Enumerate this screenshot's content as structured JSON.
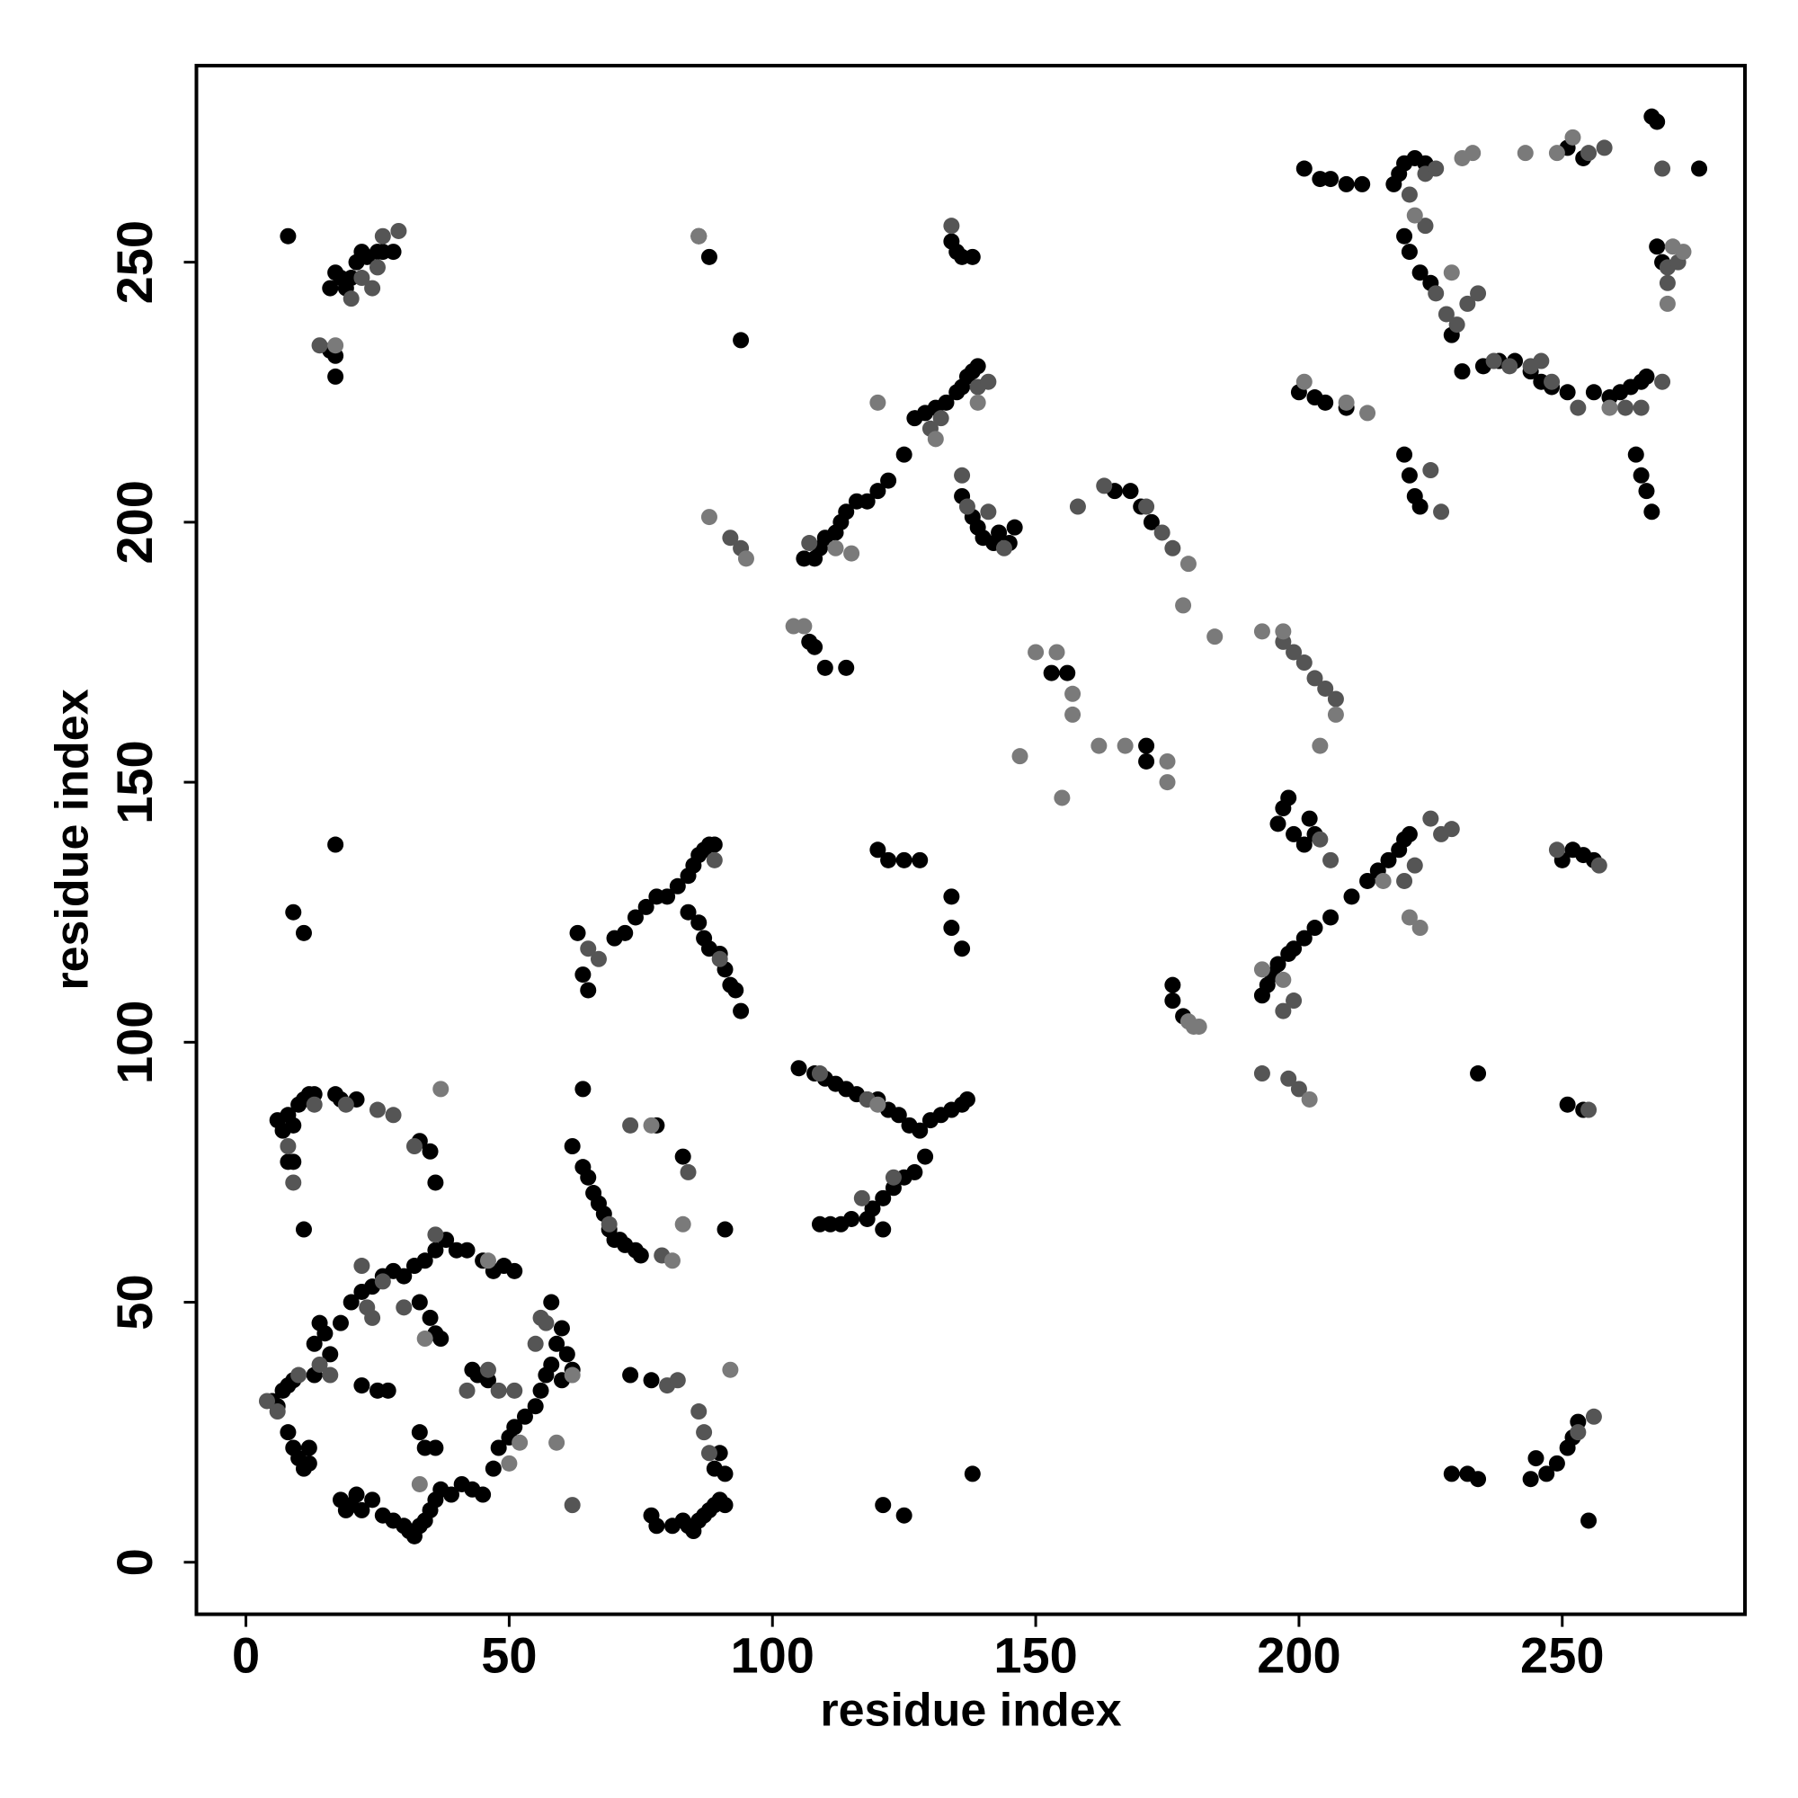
{
  "chart_data": {
    "type": "scatter",
    "xlabel": "residue index",
    "ylabel": "residue index",
    "xlim": [
      -9.4,
      284.7
    ],
    "ylim": [
      -10,
      287.8
    ],
    "xticks": [
      0,
      50,
      100,
      150,
      200,
      250
    ],
    "yticks": [
      0,
      50,
      100,
      150,
      200,
      250
    ],
    "series": [
      {
        "color": "#000000",
        "x": [
          5,
          6,
          7,
          8,
          9,
          8,
          9,
          10,
          11,
          12,
          12,
          13,
          13,
          14,
          15,
          16,
          18,
          19,
          20,
          21,
          22,
          24,
          26,
          28,
          30,
          31,
          32,
          33,
          34,
          35,
          36,
          37,
          39,
          41,
          43,
          45,
          47,
          48,
          50,
          51,
          53,
          55,
          56,
          57,
          58,
          59,
          60,
          58,
          61,
          62,
          60,
          20,
          22,
          24,
          26,
          28,
          30,
          32,
          34,
          36,
          38,
          40,
          42,
          45,
          47,
          49,
          51,
          22,
          25,
          27,
          33,
          34,
          36,
          33,
          35,
          36,
          37,
          43,
          44,
          46,
          18,
          6,
          7,
          8,
          9,
          10,
          11,
          12,
          13,
          17,
          18,
          21,
          8,
          9,
          11,
          33,
          35,
          36,
          8,
          16,
          17,
          18,
          19,
          20,
          21,
          22,
          23,
          25,
          26,
          28,
          16,
          17,
          17,
          17,
          9,
          11,
          62,
          64,
          65,
          66,
          67,
          68,
          69,
          70,
          71,
          72,
          74,
          75,
          64,
          70,
          72,
          74,
          76,
          78,
          80,
          82,
          84,
          85,
          86,
          87,
          88,
          89,
          84,
          86,
          87,
          88,
          90,
          91,
          92,
          93,
          94,
          63,
          64,
          65,
          73,
          77,
          77,
          78,
          81,
          83,
          84,
          85,
          86,
          87,
          88,
          89,
          90,
          91,
          89,
          90,
          91,
          91,
          83,
          78,
          86,
          88,
          94,
          105,
          108,
          110,
          112,
          114,
          116,
          118,
          120,
          122,
          124,
          126,
          128,
          130,
          132,
          134,
          136,
          137,
          109,
          111,
          113,
          115,
          118,
          119,
          121,
          123,
          125,
          127,
          129,
          121,
          106,
          108,
          109,
          110,
          112,
          113,
          114,
          116,
          118,
          120,
          122,
          125,
          127,
          129,
          131,
          133,
          135,
          136,
          137,
          138,
          139,
          107,
          108,
          110,
          114,
          134,
          135,
          136,
          138,
          136,
          138,
          139,
          140,
          142,
          143,
          145,
          146,
          120,
          122,
          125,
          128,
          134,
          134,
          136,
          121,
          125,
          138,
          153,
          156,
          165,
          168,
          170,
          172,
          171,
          171,
          176,
          176,
          178,
          193,
          194,
          195,
          196,
          198,
          199,
          201,
          203,
          206,
          210,
          213,
          215,
          217,
          219,
          220,
          221,
          196,
          197,
          198,
          199,
          201,
          202,
          203,
          201,
          204,
          206,
          209,
          212,
          200,
          203,
          205,
          209,
          220,
          221,
          222,
          223,
          218,
          219,
          220,
          222,
          224,
          220,
          221,
          223,
          225,
          229,
          231,
          235,
          238,
          241,
          244,
          246,
          248,
          251,
          256,
          259,
          261,
          263,
          265,
          266,
          267,
          268,
          268,
          269,
          264,
          265,
          266,
          267,
          251,
          254,
          276,
          229,
          232,
          234,
          244,
          245,
          247,
          249,
          251,
          252,
          253,
          255,
          234,
          251,
          254,
          252,
          254,
          256,
          250
        ],
        "values": [
          31,
          30,
          33,
          34,
          35,
          25,
          22,
          20,
          18,
          19,
          22,
          36,
          42,
          46,
          44,
          40,
          12,
          10,
          11,
          13,
          10,
          12,
          9,
          8,
          7,
          6,
          5,
          7,
          8,
          10,
          12,
          14,
          13,
          15,
          14,
          13,
          18,
          22,
          24,
          26,
          28,
          30,
          33,
          36,
          38,
          42,
          45,
          50,
          40,
          37,
          35,
          50,
          52,
          53,
          55,
          56,
          55,
          57,
          58,
          60,
          62,
          60,
          60,
          58,
          56,
          57,
          56,
          34,
          33,
          33,
          25,
          22,
          22,
          50,
          47,
          44,
          43,
          37,
          36,
          35,
          46,
          85,
          83,
          86,
          84,
          88,
          89,
          90,
          90,
          90,
          89,
          89,
          77,
          77,
          64,
          81,
          79,
          73,
          255,
          245,
          248,
          247,
          245,
          247,
          250,
          252,
          251,
          252,
          252,
          252,
          233,
          232,
          228,
          138,
          125,
          121,
          80,
          76,
          74,
          71,
          69,
          67,
          64,
          62,
          62,
          61,
          60,
          59,
          91,
          120,
          121,
          124,
          126,
          128,
          128,
          130,
          132,
          134,
          136,
          137,
          138,
          138,
          125,
          123,
          120,
          118,
          117,
          114,
          111,
          110,
          106,
          121,
          113,
          110,
          36,
          35,
          9,
          7,
          7,
          8,
          7,
          6,
          8,
          9,
          10,
          11,
          12,
          11,
          18,
          21,
          17,
          64,
          78,
          84,
          255,
          251,
          235,
          95,
          94,
          93,
          92,
          91,
          90,
          89,
          89,
          87,
          86,
          84,
          83,
          85,
          86,
          87,
          88,
          89,
          65,
          65,
          65,
          66,
          66,
          68,
          70,
          72,
          74,
          75,
          78,
          64,
          193,
          193,
          195,
          197,
          198,
          200,
          202,
          204,
          204,
          206,
          208,
          213,
          220,
          221,
          222,
          223,
          225,
          226,
          228,
          229,
          230,
          177,
          176,
          172,
          172,
          254,
          252,
          251,
          251,
          205,
          201,
          199,
          197,
          196,
          198,
          196,
          199,
          137,
          135,
          135,
          135,
          122,
          128,
          118,
          11,
          9,
          17,
          171,
          171,
          206,
          206,
          203,
          200,
          157,
          154,
          111,
          108,
          105,
          109,
          111,
          113,
          115,
          117,
          118,
          120,
          122,
          124,
          128,
          131,
          133,
          135,
          137,
          139,
          140,
          142,
          145,
          147,
          140,
          138,
          143,
          140,
          268,
          266,
          266,
          265,
          265,
          225,
          224,
          223,
          222,
          213,
          209,
          205,
          203,
          265,
          267,
          269,
          270,
          269,
          255,
          252,
          248,
          246,
          236,
          229,
          230,
          231,
          231,
          229,
          227,
          226,
          225,
          225,
          224,
          225,
          226,
          227,
          228,
          278,
          277,
          253,
          250,
          213,
          209,
          206,
          202,
          272,
          270,
          268,
          17,
          17,
          16,
          16,
          20,
          17,
          19,
          22,
          24,
          27,
          8,
          94,
          88,
          87,
          137,
          136,
          135,
          135
        ]
      },
      {
        "color": "#555555",
        "x": [
          4,
          6,
          10,
          14,
          16,
          22,
          26,
          30,
          36,
          42,
          46,
          48,
          51,
          55,
          56,
          57,
          23,
          24,
          8,
          9,
          13,
          19,
          25,
          28,
          32,
          14,
          20,
          22,
          24,
          25,
          26,
          29,
          62,
          65,
          67,
          69,
          73,
          79,
          80,
          82,
          84,
          86,
          87,
          88,
          89,
          90,
          92,
          94,
          107,
          109,
          117,
          118,
          123,
          130,
          132,
          134,
          136,
          137,
          139,
          141,
          141,
          144,
          158,
          163,
          171,
          174,
          176,
          197,
          199,
          201,
          203,
          205,
          207,
          197,
          199,
          193,
          198,
          204,
          206,
          220,
          222,
          225,
          227,
          229,
          221,
          224,
          226,
          226,
          228,
          230,
          232,
          234,
          225,
          227,
          244,
          246,
          248,
          253,
          262,
          265,
          269,
          270,
          272,
          253,
          256,
          255,
          257,
          258,
          255,
          269,
          270,
          200,
          249,
          224,
          237,
          240
        ],
        "values": [
          31,
          29,
          36,
          38,
          36,
          57,
          54,
          49,
          63,
          33,
          37,
          33,
          33,
          42,
          47,
          46,
          49,
          47,
          80,
          73,
          88,
          88,
          87,
          86,
          80,
          234,
          243,
          247,
          245,
          249,
          255,
          256,
          11,
          118,
          116,
          65,
          84,
          59,
          34,
          35,
          75,
          29,
          25,
          21,
          135,
          116,
          197,
          195,
          196,
          94,
          70,
          89,
          74,
          218,
          220,
          257,
          209,
          203,
          226,
          227,
          202,
          195,
          203,
          207,
          203,
          198,
          195,
          177,
          175,
          173,
          170,
          168,
          166,
          106,
          108,
          94,
          93,
          139,
          135,
          131,
          134,
          143,
          140,
          141,
          263,
          267,
          268,
          244,
          240,
          238,
          242,
          244,
          210,
          202,
          230,
          231,
          227,
          222,
          222,
          222,
          227,
          249,
          250,
          25,
          28,
          87,
          134,
          272,
          271,
          268,
          246,
          91,
          137,
          257,
          231,
          230
        ]
      },
      {
        "color": "#7a7a7a",
        "x": [
          37,
          33,
          34,
          50,
          59,
          62,
          81,
          92,
          77,
          83,
          86,
          88,
          95,
          104,
          106,
          115,
          120,
          131,
          139,
          150,
          154,
          157,
          157,
          147,
          155,
          162,
          167,
          175,
          175,
          179,
          178,
          184,
          193,
          197,
          204,
          207,
          180,
          179,
          181,
          193,
          197,
          202,
          216,
          223,
          221,
          201,
          209,
          213,
          222,
          229,
          233,
          231,
          243,
          249,
          252,
          259,
          270,
          273,
          271,
          112,
          120,
          17,
          46,
          52
        ],
        "values": [
          91,
          15,
          43,
          19,
          23,
          36,
          58,
          37,
          84,
          65,
          255,
          201,
          193,
          180,
          180,
          194,
          223,
          216,
          223,
          175,
          175,
          167,
          163,
          155,
          147,
          157,
          157,
          154,
          150,
          192,
          184,
          178,
          179,
          179,
          157,
          163,
          103,
          104,
          103,
          114,
          112,
          89,
          131,
          122,
          124,
          227,
          223,
          221,
          259,
          248,
          271,
          270,
          271,
          271,
          274,
          222,
          242,
          252,
          253,
          195,
          88,
          234,
          58,
          23
        ]
      }
    ]
  }
}
